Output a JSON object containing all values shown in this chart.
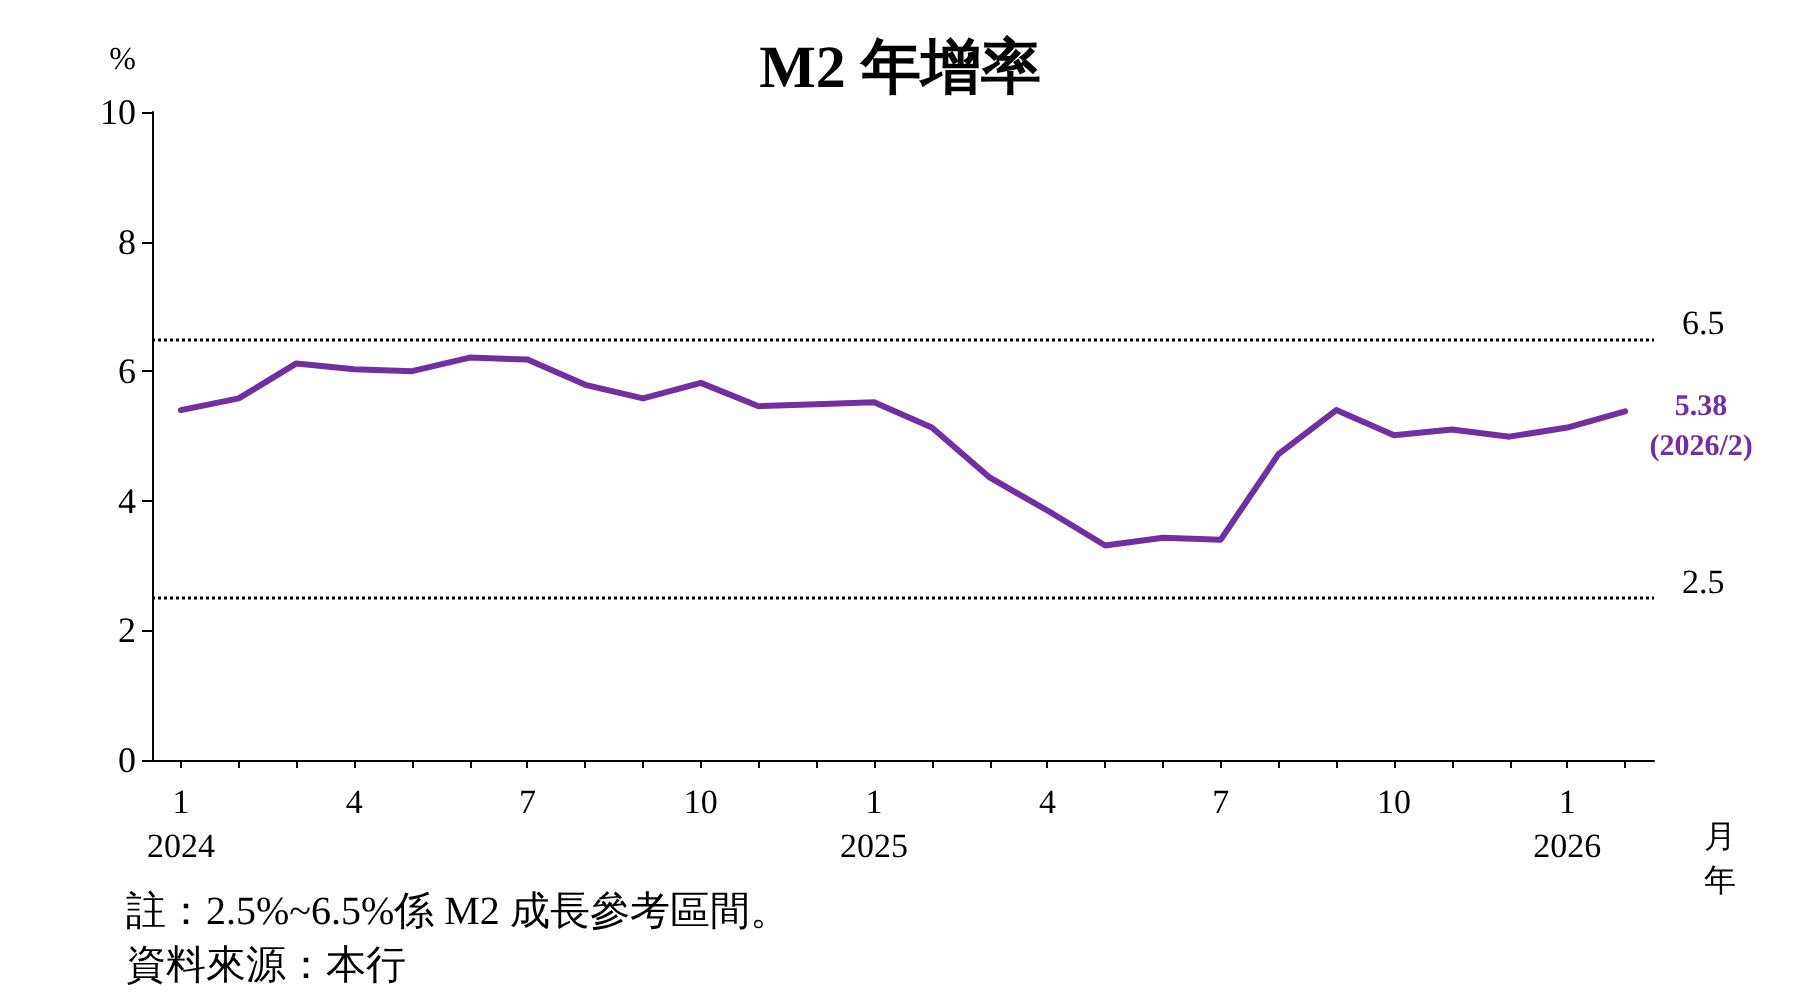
{
  "chart_data": {
    "type": "line",
    "title": "M2 年增率",
    "ylabel": "%",
    "xlabel": "月年",
    "categories": [
      "1\n2024",
      null,
      null,
      "4",
      null,
      null,
      "7",
      null,
      null,
      "10",
      null,
      null,
      "1\n2025",
      null,
      null,
      "4",
      null,
      null,
      "7",
      null,
      null,
      "10",
      null,
      null,
      "1\n2026",
      null
    ],
    "series": [
      {
        "color": "#7030a0",
        "values": [
          5.4,
          5.58,
          6.12,
          6.03,
          6.0,
          6.21,
          6.18,
          5.79,
          5.58,
          5.82,
          5.46,
          5.49,
          5.52,
          5.13,
          4.36,
          3.85,
          3.31,
          3.43,
          3.4,
          4.72,
          5.4,
          5.01,
          5.1,
          4.99,
          5.13,
          5.38
        ],
        "value_labels": [
          null,
          null,
          null,
          null,
          null,
          null,
          null,
          null,
          null,
          null,
          null,
          null,
          null,
          null,
          null,
          null,
          null,
          null,
          null,
          null,
          null,
          null,
          null,
          null,
          null,
          "5.38\n(2026/2)"
        ]
      }
    ],
    "ylim": [
      0,
      10
    ],
    "yticks": [
      0,
      2,
      4,
      6,
      8,
      10
    ],
    "grid": false,
    "marker": "none",
    "line_style": "solid",
    "ref_lines": [
      {
        "axis": "y",
        "value": 6.5,
        "label": "6.5",
        "color": "#000000",
        "line_style": "dotted"
      },
      {
        "axis": "y",
        "value": 2.5,
        "label": "2.5",
        "color": "#000000",
        "line_style": "dotted"
      }
    ],
    "annotations": [
      "註：2.5%~6.5%係 M2 成長參考區間。",
      "資料來源：本行"
    ]
  }
}
